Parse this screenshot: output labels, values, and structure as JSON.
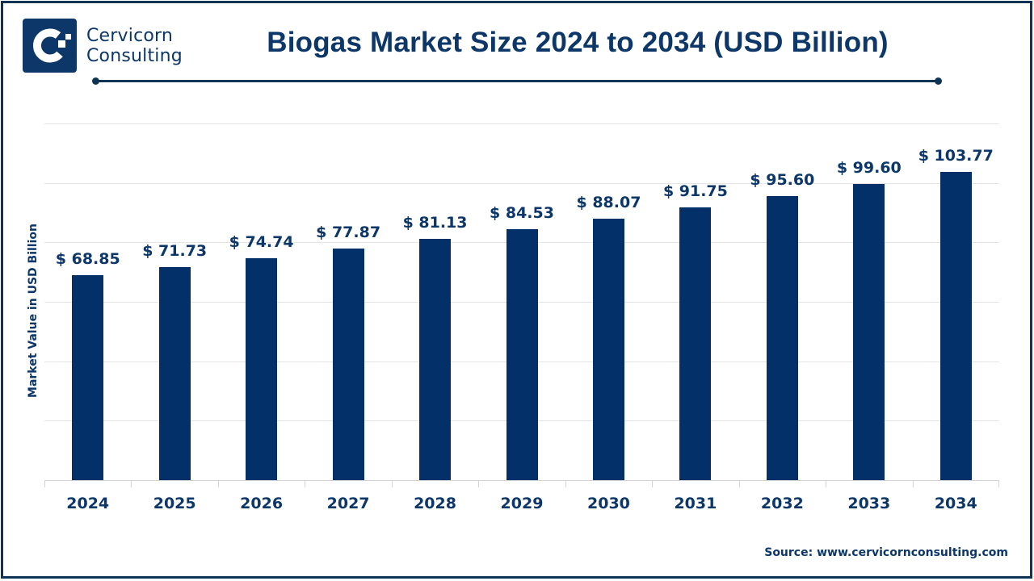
{
  "brand": {
    "line1": "Cervicorn",
    "line2": "Consulting",
    "color": "#0d3768"
  },
  "header": {
    "title": "Biogas Market Size 2024 to 2034 (USD Billion)"
  },
  "footer": {
    "source": "Source: www.cervicornconsulting.com"
  },
  "chart_data": {
    "type": "bar",
    "title": "Biogas Market Size 2024 to 2034 (USD Billion)",
    "xlabel": "",
    "ylabel": "Market Value in USD Billion",
    "categories": [
      "2024",
      "2025",
      "2026",
      "2027",
      "2028",
      "2029",
      "2030",
      "2031",
      "2032",
      "2033",
      "2034"
    ],
    "values": [
      68.85,
      71.73,
      74.74,
      77.87,
      81.13,
      84.53,
      88.07,
      91.75,
      95.6,
      99.6,
      103.77
    ],
    "value_labels": [
      "$ 68.85",
      "$ 71.73",
      "$ 74.74",
      "$ 77.87",
      "$ 81.13",
      "$ 84.53",
      "$ 88.07",
      "$ 91.75",
      "$ 95.60",
      "$ 99.60",
      "$ 103.77"
    ],
    "ylim": [
      0,
      120
    ],
    "grid": true,
    "grid_step": 20,
    "y_tick_labels_visible": false,
    "legend": "none",
    "bar_color": "#04306a"
  }
}
